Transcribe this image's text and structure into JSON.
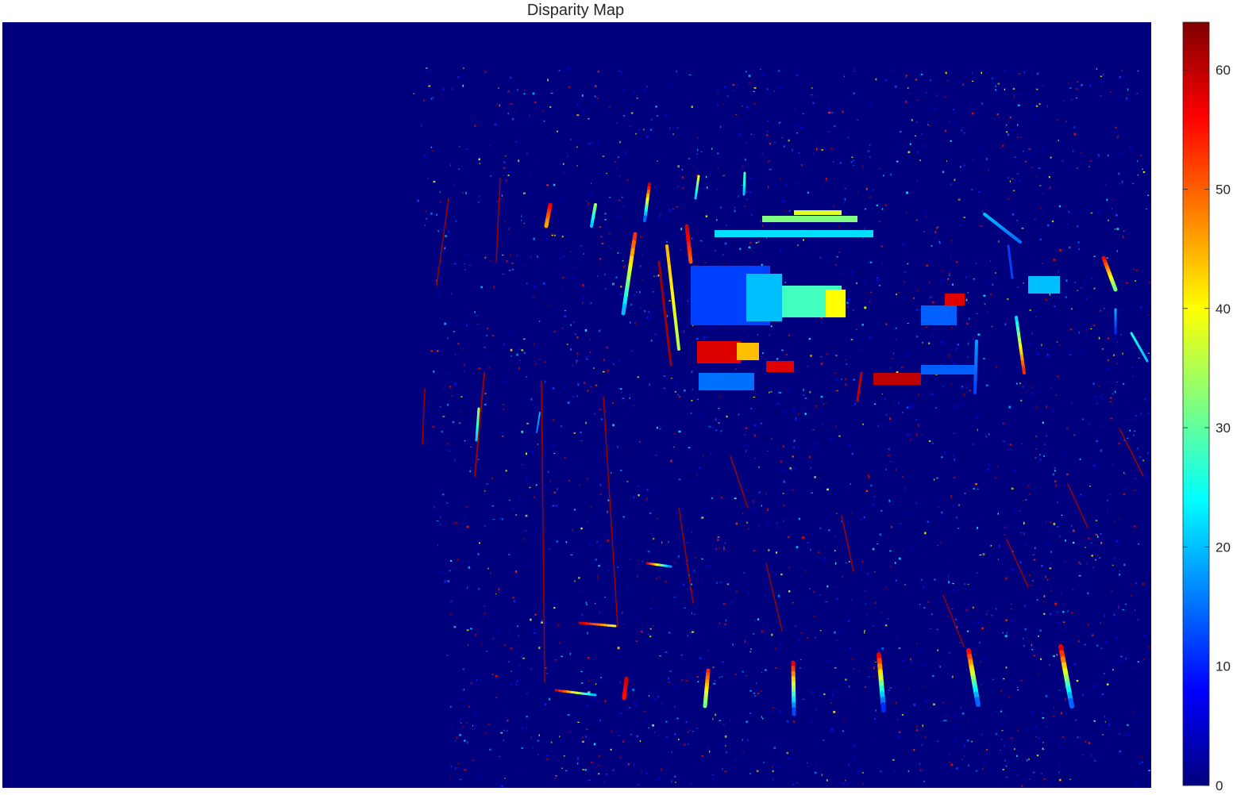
{
  "chart_data": {
    "type": "heatmap",
    "title": "Disparity Map",
    "xlabel": "",
    "ylabel": "",
    "colormap": "jet",
    "colorbar": {
      "range": [
        0,
        64
      ],
      "ticks": [
        0,
        10,
        20,
        30,
        40,
        50,
        60
      ],
      "tick_labels": [
        "0",
        "10",
        "20",
        "30",
        "40",
        "50",
        "60"
      ],
      "placement": "right"
    },
    "background_value": 0,
    "background_color": "#00007f",
    "axes_visible": false
  }
}
